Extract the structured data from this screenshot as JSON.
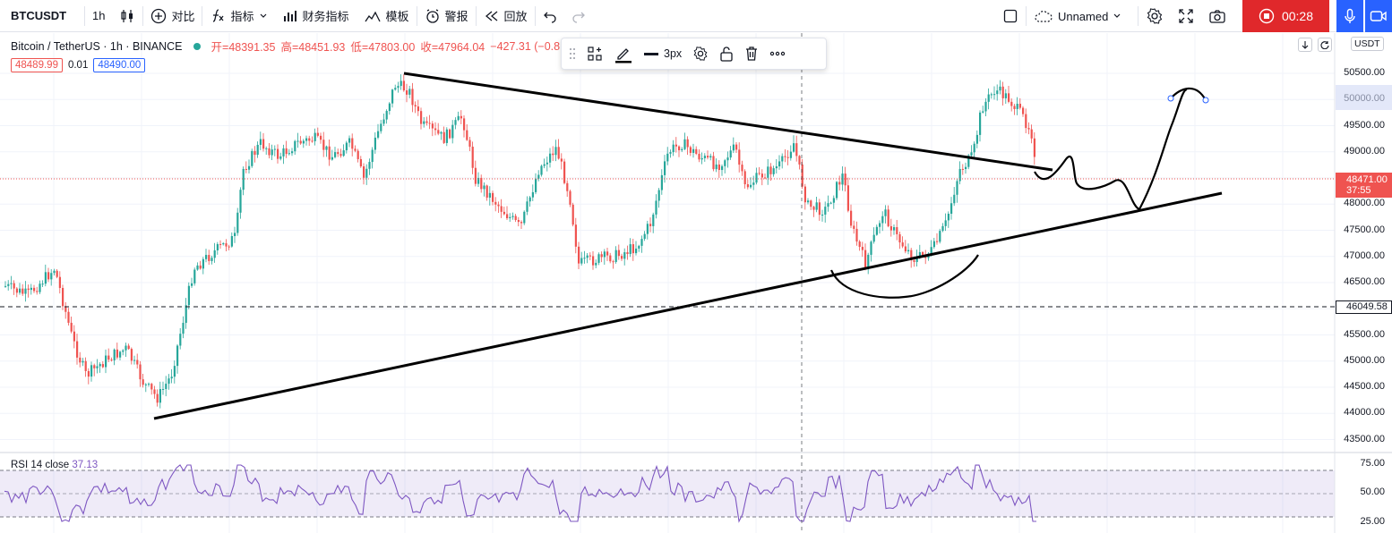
{
  "topbar": {
    "symbol": "BTCUSDT",
    "interval": "1h",
    "compare": "对比",
    "indicators": "指标",
    "financials": "财务指标",
    "templates": "模板",
    "alert": "警报",
    "replay": "回放",
    "layout_name": "Unnamed",
    "record_time": "00:28"
  },
  "legend": {
    "title": "Bitcoin / TetherUS · 1h · BINANCE",
    "open": "开=48391.35",
    "high": "高=48451.93",
    "low": "低=47803.00",
    "close": "收=47964.04",
    "change": "−427.31 (−0.8",
    "bid": "48489.99",
    "spread": "0.01",
    "ask": "48490.00"
  },
  "drawing_toolbar": {
    "width_label": "3px"
  },
  "price_axis": {
    "currency": "USDT",
    "ticks": [
      "50500.00",
      "50000.00",
      "49500.00",
      "49000.00",
      "48500.00",
      "48000.00",
      "47500.00",
      "47000.00",
      "46500.00",
      "46000.00",
      "45500.00",
      "45000.00",
      "44500.00",
      "44000.00",
      "43500.00"
    ],
    "last_price": "48471.00",
    "countdown": "37:55",
    "horizontal_line": "46049.58"
  },
  "rsi": {
    "label": "RSI 14 close",
    "value": "37.13",
    "ticks": [
      "75.00",
      "50.00",
      "25.00"
    ]
  },
  "colors": {
    "up": "#26a69a",
    "down": "#ef5350",
    "rsi": "#7e57c2",
    "record": "#e0282b",
    "accent": "#2962ff"
  }
}
